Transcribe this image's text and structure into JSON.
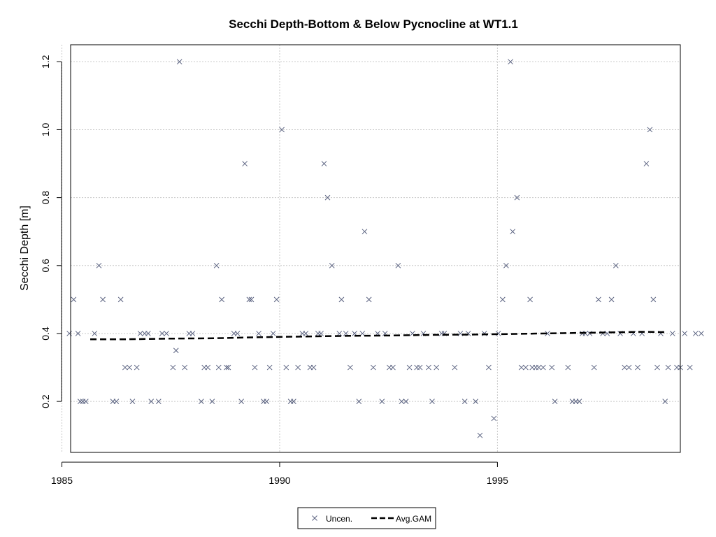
{
  "chart_data": {
    "type": "scatter",
    "title": "Secchi Depth-Bottom & Below Pycnocline at WT1.1",
    "xlabel": "",
    "ylabel": "Secchi Depth [m]",
    "xlim": [
      1985.2,
      1999.2
    ],
    "ylim": [
      0.05,
      1.25
    ],
    "x_ticks": [
      1985,
      1990,
      1995
    ],
    "y_ticks": [
      0.2,
      0.4,
      0.6,
      0.8,
      1.0,
      1.2
    ],
    "grid": true,
    "legend_position": "bottom",
    "series": [
      {
        "name": "Uncen.",
        "marker": "x",
        "color": "#5a6280",
        "points": [
          [
            1985.17,
            0.4
          ],
          [
            1985.27,
            0.5
          ],
          [
            1985.37,
            0.4
          ],
          [
            1985.42,
            0.2
          ],
          [
            1985.48,
            0.2
          ],
          [
            1985.55,
            0.2
          ],
          [
            1985.75,
            0.4
          ],
          [
            1985.85,
            0.6
          ],
          [
            1985.94,
            0.5
          ],
          [
            1986.17,
            0.2
          ],
          [
            1986.25,
            0.2
          ],
          [
            1986.35,
            0.5
          ],
          [
            1986.45,
            0.3
          ],
          [
            1986.55,
            0.3
          ],
          [
            1986.62,
            0.2
          ],
          [
            1986.72,
            0.3
          ],
          [
            1986.8,
            0.4
          ],
          [
            1986.9,
            0.4
          ],
          [
            1986.98,
            0.4
          ],
          [
            1987.05,
            0.2
          ],
          [
            1987.22,
            0.2
          ],
          [
            1987.3,
            0.4
          ],
          [
            1987.4,
            0.4
          ],
          [
            1987.55,
            0.3
          ],
          [
            1987.62,
            0.35
          ],
          [
            1987.7,
            1.2
          ],
          [
            1987.82,
            0.3
          ],
          [
            1987.92,
            0.4
          ],
          [
            1988.0,
            0.4
          ],
          [
            1988.2,
            0.2
          ],
          [
            1988.27,
            0.3
          ],
          [
            1988.35,
            0.3
          ],
          [
            1988.45,
            0.2
          ],
          [
            1988.55,
            0.6
          ],
          [
            1988.6,
            0.3
          ],
          [
            1988.67,
            0.5
          ],
          [
            1988.78,
            0.3
          ],
          [
            1988.82,
            0.3
          ],
          [
            1988.95,
            0.4
          ],
          [
            1989.03,
            0.4
          ],
          [
            1989.12,
            0.2
          ],
          [
            1989.2,
            0.9
          ],
          [
            1989.3,
            0.5
          ],
          [
            1989.35,
            0.5
          ],
          [
            1989.43,
            0.3
          ],
          [
            1989.52,
            0.4
          ],
          [
            1989.63,
            0.2
          ],
          [
            1989.7,
            0.2
          ],
          [
            1989.77,
            0.3
          ],
          [
            1989.85,
            0.4
          ],
          [
            1989.93,
            0.5
          ],
          [
            1990.05,
            1.0
          ],
          [
            1990.15,
            0.3
          ],
          [
            1990.25,
            0.2
          ],
          [
            1990.32,
            0.2
          ],
          [
            1990.42,
            0.3
          ],
          [
            1990.52,
            0.4
          ],
          [
            1990.6,
            0.4
          ],
          [
            1990.7,
            0.3
          ],
          [
            1990.78,
            0.3
          ],
          [
            1990.88,
            0.4
          ],
          [
            1990.95,
            0.4
          ],
          [
            1991.02,
            0.9
          ],
          [
            1991.1,
            0.8
          ],
          [
            1991.2,
            0.6
          ],
          [
            1991.37,
            0.4
          ],
          [
            1991.42,
            0.5
          ],
          [
            1991.52,
            0.4
          ],
          [
            1991.62,
            0.3
          ],
          [
            1991.72,
            0.4
          ],
          [
            1991.82,
            0.2
          ],
          [
            1991.9,
            0.4
          ],
          [
            1991.95,
            0.7
          ],
          [
            1992.05,
            0.5
          ],
          [
            1992.15,
            0.3
          ],
          [
            1992.25,
            0.4
          ],
          [
            1992.35,
            0.2
          ],
          [
            1992.42,
            0.4
          ],
          [
            1992.52,
            0.3
          ],
          [
            1992.6,
            0.3
          ],
          [
            1992.72,
            0.6
          ],
          [
            1992.8,
            0.2
          ],
          [
            1992.9,
            0.2
          ],
          [
            1992.98,
            0.3
          ],
          [
            1993.05,
            0.4
          ],
          [
            1993.15,
            0.3
          ],
          [
            1993.22,
            0.3
          ],
          [
            1993.3,
            0.4
          ],
          [
            1993.42,
            0.3
          ],
          [
            1993.5,
            0.2
          ],
          [
            1993.6,
            0.3
          ],
          [
            1993.72,
            0.4
          ],
          [
            1993.78,
            0.4
          ],
          [
            1994.02,
            0.3
          ],
          [
            1994.15,
            0.4
          ],
          [
            1994.25,
            0.2
          ],
          [
            1994.33,
            0.4
          ],
          [
            1994.5,
            0.2
          ],
          [
            1994.6,
            0.1
          ],
          [
            1994.7,
            0.4
          ],
          [
            1994.8,
            0.3
          ],
          [
            1994.92,
            0.15
          ],
          [
            1995.02,
            0.4
          ],
          [
            1995.12,
            0.5
          ],
          [
            1995.2,
            0.6
          ],
          [
            1995.3,
            1.2
          ],
          [
            1995.35,
            0.7
          ],
          [
            1995.45,
            0.8
          ],
          [
            1995.55,
            0.3
          ],
          [
            1995.65,
            0.3
          ],
          [
            1995.75,
            0.5
          ],
          [
            1995.8,
            0.3
          ],
          [
            1995.88,
            0.3
          ],
          [
            1995.95,
            0.3
          ],
          [
            1996.05,
            0.3
          ],
          [
            1996.15,
            0.4
          ],
          [
            1996.25,
            0.3
          ],
          [
            1996.32,
            0.2
          ],
          [
            1996.62,
            0.3
          ],
          [
            1996.72,
            0.2
          ],
          [
            1996.8,
            0.2
          ],
          [
            1996.88,
            0.2
          ],
          [
            1996.95,
            0.4
          ],
          [
            1997.02,
            0.4
          ],
          [
            1997.12,
            0.4
          ],
          [
            1997.22,
            0.3
          ],
          [
            1997.32,
            0.5
          ],
          [
            1997.42,
            0.4
          ],
          [
            1997.52,
            0.4
          ],
          [
            1997.62,
            0.5
          ],
          [
            1997.72,
            0.6
          ],
          [
            1997.82,
            0.4
          ],
          [
            1997.92,
            0.3
          ],
          [
            1998.02,
            0.3
          ],
          [
            1998.12,
            0.4
          ],
          [
            1998.22,
            0.3
          ],
          [
            1998.32,
            0.4
          ],
          [
            1998.42,
            0.9
          ],
          [
            1998.5,
            1.0
          ],
          [
            1998.58,
            0.5
          ],
          [
            1998.67,
            0.3
          ],
          [
            1998.75,
            0.4
          ],
          [
            1998.85,
            0.2
          ],
          [
            1998.92,
            0.3
          ],
          [
            1999.02,
            0.4
          ],
          [
            1999.12,
            0.3
          ],
          [
            1999.2,
            0.3
          ],
          [
            1999.3,
            0.4
          ],
          [
            1999.42,
            0.3
          ],
          [
            1999.55,
            0.4
          ],
          [
            1999.68,
            0.4
          ]
        ]
      },
      {
        "name": "Avg.GAM",
        "line_style": "dashed",
        "color": "#000000",
        "points": [
          [
            1985.65,
            0.383
          ],
          [
            1986.5,
            0.383
          ],
          [
            1987.5,
            0.385
          ],
          [
            1988.5,
            0.386
          ],
          [
            1989.5,
            0.389
          ],
          [
            1990.5,
            0.391
          ],
          [
            1991.5,
            0.393
          ],
          [
            1992.5,
            0.394
          ],
          [
            1993.5,
            0.396
          ],
          [
            1994.5,
            0.397
          ],
          [
            1995.5,
            0.399
          ],
          [
            1996.5,
            0.401
          ],
          [
            1997.5,
            0.403
          ],
          [
            1998.3,
            0.405
          ],
          [
            1998.9,
            0.404
          ]
        ]
      }
    ]
  }
}
